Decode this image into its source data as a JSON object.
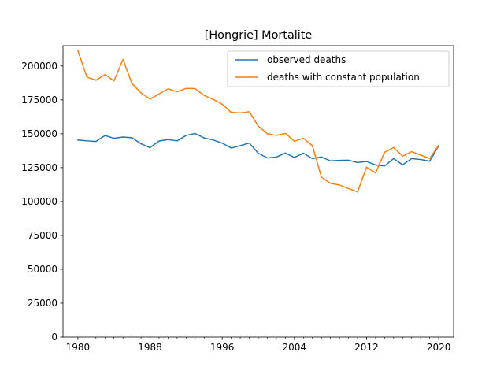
{
  "chart_data": {
    "type": "line",
    "title": "[Hongrie] Mortalite",
    "xlabel": "",
    "ylabel": "",
    "xlim": [
      1978.35,
      2021.65
    ],
    "ylim": [
      0,
      215000
    ],
    "xticks": [
      1980,
      1988,
      1996,
      2004,
      2012,
      2020
    ],
    "yticks": [
      0,
      25000,
      50000,
      75000,
      100000,
      125000,
      150000,
      175000,
      200000
    ],
    "legend_position": "top-right",
    "grid": false,
    "x": [
      1980,
      1981,
      1982,
      1983,
      1984,
      1985,
      1986,
      1987,
      1988,
      1989,
      1990,
      1991,
      1992,
      1993,
      1994,
      1995,
      1996,
      1997,
      1998,
      1999,
      2000,
      2001,
      2002,
      2003,
      2004,
      2005,
      2006,
      2007,
      2008,
      2009,
      2010,
      2011,
      2012,
      2013,
      2014,
      2015,
      2016,
      2017,
      2018,
      2019,
      2020
    ],
    "series": [
      {
        "name": "observed deaths",
        "color": "#1f77b4",
        "values": [
          145400,
          144800,
          144300,
          148700,
          146700,
          147600,
          147100,
          142600,
          139800,
          144700,
          145700,
          144800,
          148800,
          150200,
          146900,
          145400,
          143100,
          139500,
          141200,
          143200,
          135600,
          132200,
          132800,
          135800,
          132500,
          135700,
          131600,
          132900,
          130000,
          130400,
          130500,
          128800,
          129600,
          126900,
          126300,
          131700,
          127100,
          131700,
          131000,
          129800,
          141200
        ]
      },
      {
        "name": "deaths with constant population",
        "color": "#ff7f0e",
        "values": [
          211300,
          191800,
          189500,
          193700,
          189000,
          204800,
          187000,
          180100,
          175600,
          179400,
          183100,
          181000,
          183500,
          183300,
          178300,
          175400,
          171800,
          165800,
          165400,
          166300,
          155600,
          150000,
          148800,
          150300,
          144500,
          146700,
          141200,
          118000,
          113400,
          112200,
          109600,
          107100,
          125400,
          121100,
          136300,
          139900,
          133500,
          136800,
          134300,
          131800,
          141600
        ]
      }
    ]
  }
}
